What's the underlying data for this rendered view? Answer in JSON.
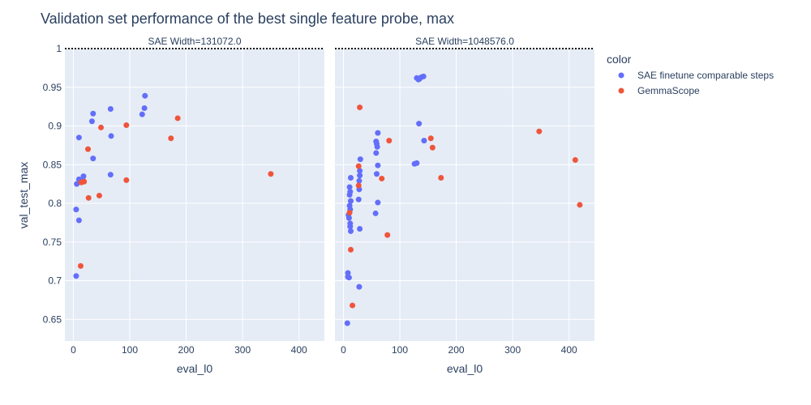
{
  "chart_data": {
    "type": "scatter",
    "title": "Validation set performance of the best single feature probe, max",
    "xlabel": "eval_l0",
    "ylabel": "val_test_max",
    "legend_title": "color",
    "legend_position": "top-right",
    "xlim": [
      -15,
      445
    ],
    "ylim": [
      0.622,
      1.0
    ],
    "x_ticks": [
      0,
      100,
      200,
      300,
      400
    ],
    "y_ticks": [
      0.65,
      0.7,
      0.75,
      0.8,
      0.85,
      0.9,
      0.95,
      1
    ],
    "y_tick_labels": [
      "0.65",
      "0.7",
      "0.75",
      "0.8",
      "0.85",
      "0.9",
      "0.95",
      "1"
    ],
    "reference_line_y": 1,
    "series_colors": {
      "SAE finetune comparable steps": "#636efa",
      "GemmaScope": "#ef553b"
    },
    "grid": true,
    "plot_background": "#e5ecf6",
    "facets": [
      {
        "title": "SAE Width=131072.0",
        "series": [
          {
            "name": "SAE finetune comparable steps",
            "points": [
              [
                5,
                0.706
              ],
              [
                5,
                0.792
              ],
              [
                6,
                0.825
              ],
              [
                10,
                0.885
              ],
              [
                10,
                0.778
              ],
              [
                10,
                0.831
              ],
              [
                18,
                0.829
              ],
              [
                18,
                0.835
              ],
              [
                33,
                0.906
              ],
              [
                35,
                0.916
              ],
              [
                35,
                0.858
              ],
              [
                66,
                0.922
              ],
              [
                67,
                0.887
              ],
              [
                66,
                0.837
              ],
              [
                122,
                0.915
              ],
              [
                126,
                0.923
              ],
              [
                127,
                0.939
              ]
            ]
          },
          {
            "name": "GemmaScope",
            "points": [
              [
                13,
                0.719
              ],
              [
                14,
                0.827
              ],
              [
                19,
                0.828
              ],
              [
                26,
                0.87
              ],
              [
                27,
                0.807
              ],
              [
                46,
                0.81
              ],
              [
                49,
                0.898
              ],
              [
                94,
                0.901
              ],
              [
                94,
                0.83
              ],
              [
                173,
                0.884
              ],
              [
                185,
                0.91
              ],
              [
                350,
                0.838
              ]
            ]
          }
        ]
      },
      {
        "title": "SAE Width=1048576.0",
        "series": [
          {
            "name": "SAE finetune comparable steps",
            "points": [
              [
                7,
                0.645
              ],
              [
                8,
                0.705
              ],
              [
                8,
                0.71
              ],
              [
                10,
                0.704
              ],
              [
                9,
                0.785
              ],
              [
                10,
                0.781
              ],
              [
                11,
                0.797
              ],
              [
                11,
                0.811
              ],
              [
                11,
                0.821
              ],
              [
                12,
                0.815
              ],
              [
                12,
                0.774
              ],
              [
                12,
                0.77
              ],
              [
                13,
                0.764
              ],
              [
                13,
                0.803
              ],
              [
                13,
                0.833
              ],
              [
                12,
                0.792
              ],
              [
                27,
                0.805
              ],
              [
                28,
                0.818
              ],
              [
                28,
                0.829
              ],
              [
                29,
                0.836
              ],
              [
                29,
                0.842
              ],
              [
                29,
                0.767
              ],
              [
                30,
                0.857
              ],
              [
                28,
                0.692
              ],
              [
                57,
                0.787
              ],
              [
                58,
                0.865
              ],
              [
                58,
                0.88
              ],
              [
                59,
                0.877
              ],
              [
                59,
                0.838
              ],
              [
                60,
                0.873
              ],
              [
                61,
                0.891
              ],
              [
                61,
                0.849
              ],
              [
                61,
                0.801
              ],
              [
                126,
                0.851
              ],
              [
                130,
                0.852
              ],
              [
                130,
                0.962
              ],
              [
                133,
                0.96
              ],
              [
                135,
                0.961
              ],
              [
                138,
                0.963
              ],
              [
                142,
                0.964
              ],
              [
                134,
                0.903
              ],
              [
                143,
                0.881
              ]
            ]
          },
          {
            "name": "GemmaScope",
            "points": [
              [
                11,
                0.788
              ],
              [
                13,
                0.74
              ],
              [
                16,
                0.668
              ],
              [
                27,
                0.848
              ],
              [
                27,
                0.823
              ],
              [
                29,
                0.924
              ],
              [
                68,
                0.832
              ],
              [
                78,
                0.759
              ],
              [
                81,
                0.881
              ],
              [
                155,
                0.884
              ],
              [
                158,
                0.872
              ],
              [
                173,
                0.833
              ],
              [
                347,
                0.893
              ],
              [
                411,
                0.856
              ],
              [
                419,
                0.798
              ]
            ]
          }
        ]
      }
    ]
  }
}
